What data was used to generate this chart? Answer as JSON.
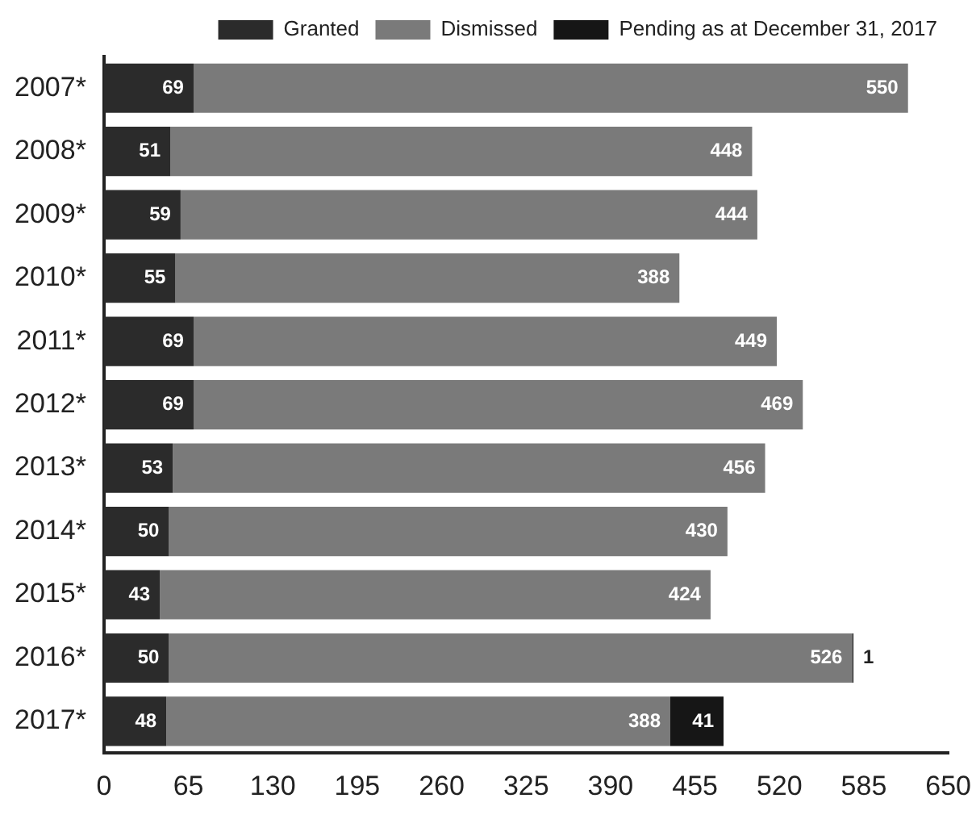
{
  "chart_data": {
    "type": "bar",
    "orientation": "horizontal",
    "stacked": true,
    "data_labels": true,
    "grid": false,
    "legend": "top right",
    "categories": [
      "2007*",
      "2008*",
      "2009*",
      "2010*",
      "2011*",
      "2012*",
      "2013*",
      "2014*",
      "2015*",
      "2016*",
      "2017*"
    ],
    "series": [
      {
        "name": "Granted",
        "color": "#2b2b2b",
        "values": [
          69,
          51,
          59,
          55,
          69,
          69,
          53,
          50,
          43,
          50,
          48
        ]
      },
      {
        "name": "Dismissed",
        "color": "#7a7a7a",
        "values": [
          550,
          448,
          444,
          388,
          449,
          469,
          456,
          430,
          424,
          526,
          388
        ]
      },
      {
        "name": "Pending as at December 31, 2017",
        "color": "#161616",
        "values": [
          null,
          null,
          null,
          null,
          null,
          null,
          null,
          null,
          null,
          1,
          41
        ]
      }
    ],
    "xlim": [
      0,
      650
    ],
    "xticks": [
      0,
      65,
      130,
      195,
      260,
      325,
      390,
      455,
      520,
      585,
      650
    ]
  }
}
